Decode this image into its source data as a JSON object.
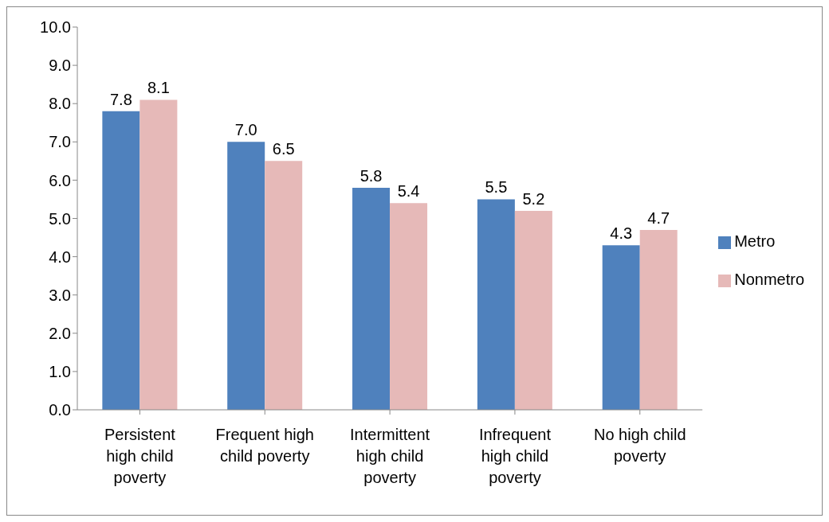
{
  "chart_data": {
    "type": "bar",
    "categories": [
      "Persistent high child poverty",
      "Frequent high child poverty",
      "Intermittent high child poverty",
      "Infrequent high child poverty",
      "No high child poverty"
    ],
    "series": [
      {
        "name": "Metro",
        "color": "#4f81bd",
        "values": [
          7.8,
          7.0,
          5.8,
          5.5,
          4.3
        ],
        "value_labels": [
          "7.8",
          "7.0",
          "5.8",
          "5.5",
          "4.3"
        ]
      },
      {
        "name": "Nonmetro",
        "color": "#e6b9b8",
        "values": [
          8.1,
          6.5,
          5.4,
          5.2,
          4.7
        ],
        "value_labels": [
          "8.1",
          "6.5",
          "5.4",
          "5.2",
          "4.7"
        ]
      }
    ],
    "ylim": [
      0,
      10
    ],
    "yticks": [
      {
        "value": 0,
        "label": "0.0"
      },
      {
        "value": 1,
        "label": "1.0"
      },
      {
        "value": 2,
        "label": "2.0"
      },
      {
        "value": 3,
        "label": "3.0"
      },
      {
        "value": 4,
        "label": "4.0"
      },
      {
        "value": 5,
        "label": "5.0"
      },
      {
        "value": 6,
        "label": "6.0"
      },
      {
        "value": 7,
        "label": "7.0"
      },
      {
        "value": 8,
        "label": "8.0"
      },
      {
        "value": 9,
        "label": "9.0"
      },
      {
        "value": 10,
        "label": "10.0"
      }
    ],
    "grid": false,
    "legend": "right"
  }
}
